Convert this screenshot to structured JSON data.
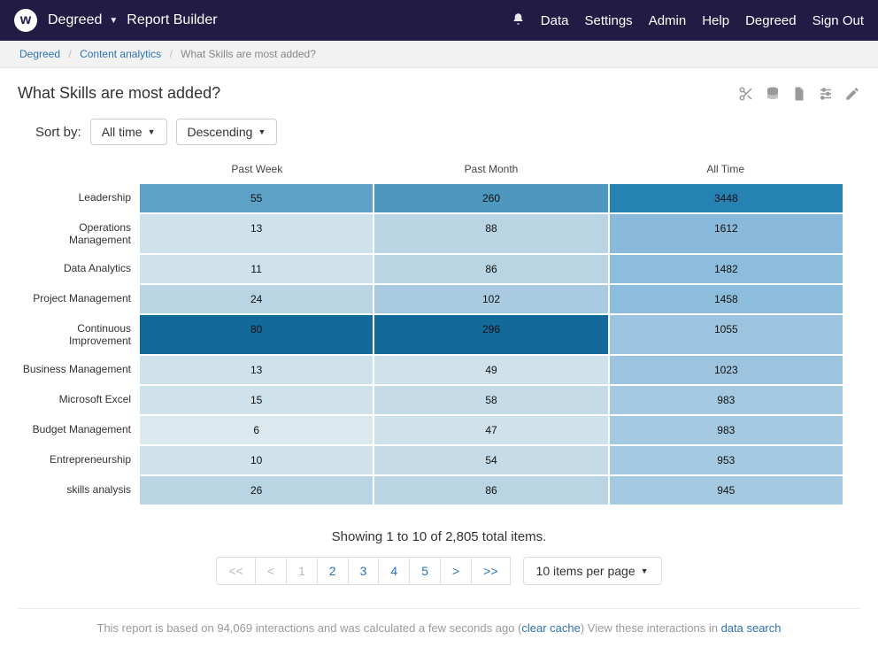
{
  "topbar": {
    "logo_letter": "w",
    "brand": "Degreed",
    "module": "Report Builder",
    "nav": [
      "Data",
      "Settings",
      "Admin",
      "Help",
      "Degreed",
      "Sign Out"
    ]
  },
  "breadcrumb": {
    "root": "Degreed",
    "section": "Content analytics",
    "current": "What Skills are most added?"
  },
  "page_title": "What Skills are most added?",
  "sort": {
    "label": "Sort by:",
    "field": "All time",
    "direction": "Descending"
  },
  "heatmap": {
    "type": "heatmap-table",
    "columns": [
      "Past Week",
      "Past Month",
      "All Time"
    ],
    "row_label_fontsize": 12,
    "cell_fontsize": 12,
    "cell_text_color": "#111111",
    "rows": [
      {
        "label": "Leadership",
        "values": [
          55,
          260,
          3448
        ],
        "colors": [
          "#5da2c6",
          "#4e97bf",
          "#2782b4"
        ]
      },
      {
        "label": "Operations Management",
        "values": [
          13,
          88,
          1612
        ],
        "colors": [
          "#cfe2eb",
          "#b9d4e2",
          "#89badb"
        ]
      },
      {
        "label": "Data Analytics",
        "values": [
          11,
          86,
          1482
        ],
        "colors": [
          "#cfe2eb",
          "#b9d4e2",
          "#8dbddc"
        ]
      },
      {
        "label": "Project Management",
        "values": [
          24,
          102,
          1458
        ],
        "colors": [
          "#b9d4e2",
          "#a9cae0",
          "#8dbddc"
        ]
      },
      {
        "label": "Continuous Improvement",
        "values": [
          80,
          296,
          1055
        ],
        "colors": [
          "#13699a",
          "#13699a",
          "#9cc4df"
        ]
      },
      {
        "label": "Business Management",
        "values": [
          13,
          49,
          1023
        ],
        "colors": [
          "#cfe2eb",
          "#cfe2eb",
          "#9cc4df"
        ]
      },
      {
        "label": "Microsoft Excel",
        "values": [
          15,
          58,
          983
        ],
        "colors": [
          "#cfe2eb",
          "#c5dbe7",
          "#a4c9e0"
        ]
      },
      {
        "label": "Budget Management",
        "values": [
          6,
          47,
          983
        ],
        "colors": [
          "#dce9ef",
          "#cfe2eb",
          "#a4c9e0"
        ]
      },
      {
        "label": "Entrepreneurship",
        "values": [
          10,
          54,
          953
        ],
        "colors": [
          "#cfe2eb",
          "#c5dbe7",
          "#a4c9e0"
        ]
      },
      {
        "label": "skills analysis",
        "values": [
          26,
          86,
          945
        ],
        "colors": [
          "#b9d4e2",
          "#b9d4e2",
          "#a4c9e0"
        ]
      }
    ]
  },
  "pagination": {
    "summary": "Showing 1 to 10 of 2,805 total items.",
    "first": "<<",
    "prev": "<",
    "pages": [
      "1",
      "2",
      "3",
      "4",
      "5"
    ],
    "current_page_index": 0,
    "next": ">",
    "last": ">>",
    "items_per_page": "10 items per page"
  },
  "footnote": {
    "prefix": "This report is based on 94,069 interactions and was calculated a few seconds ago (",
    "clear_cache": "clear cache",
    "middle": ") View these interactions in ",
    "data_search": "data search"
  },
  "colors": {
    "topbar_bg": "#221b44",
    "link": "#2e72b2",
    "muted": "#9a9a9a"
  }
}
